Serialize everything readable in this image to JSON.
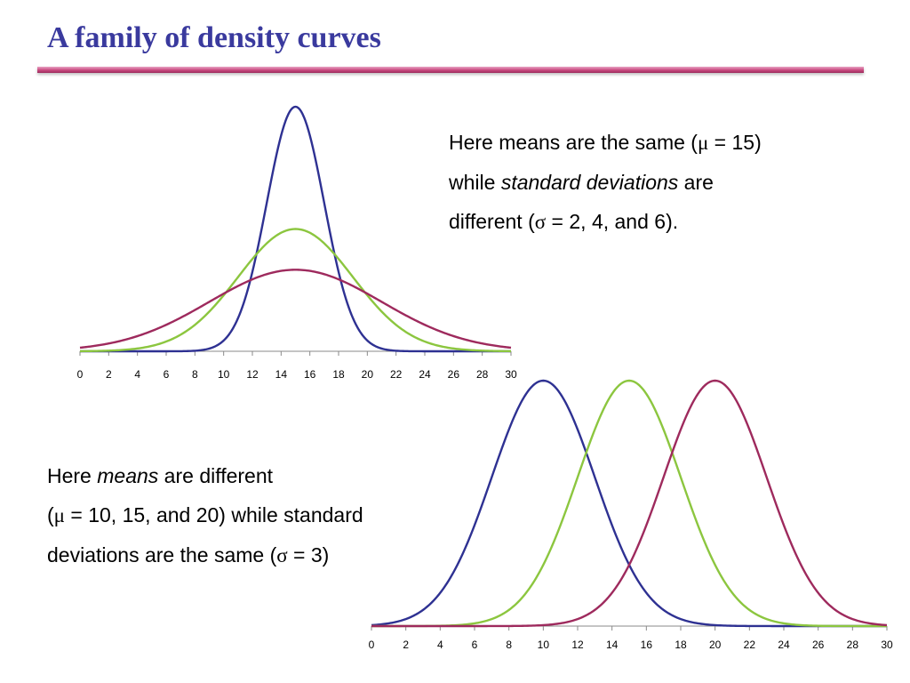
{
  "slide": {
    "title": "A family of density curves"
  },
  "text1": {
    "line1": "Here means are the same (",
    "mu": "μ",
    "line1_end": " = 15)",
    "line2_pre": "while ",
    "line2_em": "standard deviations",
    "line2_post": " are",
    "line3_pre": "different (",
    "sigma": "σ",
    "line3_post": " = 2, 4, and 6)."
  },
  "text2": {
    "line1_pre": "Here ",
    "line1_em": "means",
    "line1_post": " are different",
    "line2_pre": "(",
    "mu": "μ",
    "line2_post": " = 10, 15, and 20) while standard",
    "line3_pre": "deviations are the same (",
    "sigma": "σ",
    "line3_post": " = 3)"
  },
  "chart_data": [
    {
      "type": "line",
      "x_ticks": [
        0,
        2,
        4,
        6,
        8,
        10,
        12,
        14,
        16,
        18,
        20,
        22,
        24,
        26,
        28,
        30
      ],
      "xlim": [
        0,
        30
      ],
      "series": [
        {
          "mean": 15,
          "sd": 2,
          "color": "#2e3192"
        },
        {
          "mean": 15,
          "sd": 4,
          "color": "#8cc63f"
        },
        {
          "mean": 15,
          "sd": 6,
          "color": "#9e2a5d"
        }
      ]
    },
    {
      "type": "line",
      "x_ticks": [
        0,
        2,
        4,
        6,
        8,
        10,
        12,
        14,
        16,
        18,
        20,
        22,
        24,
        26,
        28,
        30
      ],
      "xlim": [
        0,
        30
      ],
      "series": [
        {
          "mean": 10,
          "sd": 3,
          "color": "#2e3192"
        },
        {
          "mean": 15,
          "sd": 3,
          "color": "#8cc63f"
        },
        {
          "mean": 20,
          "sd": 3,
          "color": "#9e2a5d"
        }
      ]
    }
  ]
}
